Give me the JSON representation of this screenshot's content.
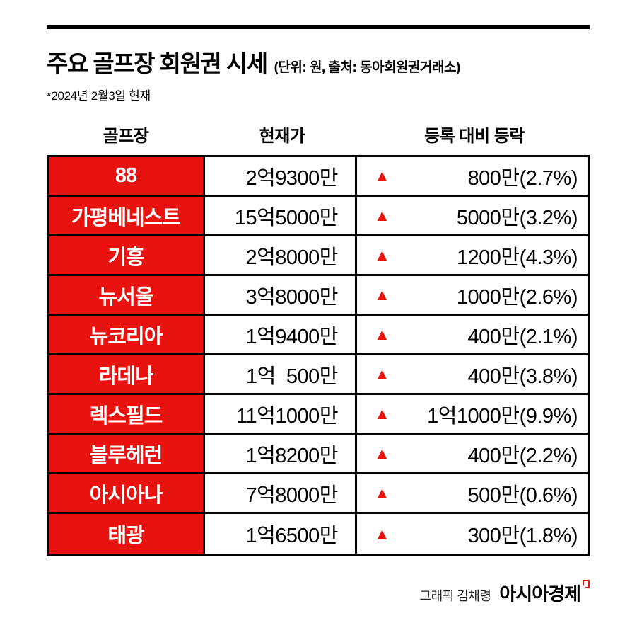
{
  "header": {
    "title": "주요 골프장 회원권 시세",
    "title_note": "(단위: 원, 출처: 동아회원권거래소)",
    "date_note": "*2024년 2월3일 현재"
  },
  "table": {
    "up_symbol": "▲",
    "columns": {
      "c0": "골프장",
      "c1": "현재가",
      "c2": "등록 대비 등락"
    },
    "rows": [
      {
        "name": "88",
        "price": "2억9300만",
        "change": "800만(2.7%)"
      },
      {
        "name": "가평베네스트",
        "price": "15억5000만",
        "change": "5000만(3.2%)"
      },
      {
        "name": "기흥",
        "price": "2억8000만",
        "change": "1200만(4.3%)"
      },
      {
        "name": "뉴서울",
        "price": "3억8000만",
        "change": "1000만(2.6%)"
      },
      {
        "name": "뉴코리아",
        "price": "1억9400만",
        "change": "400만(2.1%)"
      },
      {
        "name": "라데나",
        "price": "1억  500만",
        "change": "400만(3.8%)"
      },
      {
        "name": "렉스필드",
        "price": "11억1000만",
        "change": "1억1000만(9.9%)"
      },
      {
        "name": "블루헤런",
        "price": "1억8200만",
        "change": "400만(2.2%)"
      },
      {
        "name": "아시아나",
        "price": "7억8000만",
        "change": "500만(0.6%)"
      },
      {
        "name": "태광",
        "price": "1억6500만",
        "change": "300만(1.8%)"
      }
    ]
  },
  "footer": {
    "credit": "그래픽 김채령",
    "brand": "아시아경제"
  },
  "colors": {
    "accent_red": "#e8120f",
    "rule_black": "#000000"
  },
  "chart_data": {
    "type": "table",
    "title": "주요 골프장 회원권 시세",
    "unit_source": "단위: 원, 출처: 동아회원권거래소",
    "as_of": "2024년 2월3일 현재",
    "columns": [
      "골프장",
      "현재가",
      "등록 대비 등락"
    ],
    "rows": [
      {
        "golf_course": "88",
        "current_price_text": "2억9300만",
        "current_price_man_won": 29300,
        "change_direction": "up",
        "change_text": "800만(2.7%)",
        "change_man_won": 800,
        "change_pct": 2.7
      },
      {
        "golf_course": "가평베네스트",
        "current_price_text": "15억5000만",
        "current_price_man_won": 155000,
        "change_direction": "up",
        "change_text": "5000만(3.2%)",
        "change_man_won": 5000,
        "change_pct": 3.2
      },
      {
        "golf_course": "기흥",
        "current_price_text": "2억8000만",
        "current_price_man_won": 28000,
        "change_direction": "up",
        "change_text": "1200만(4.3%)",
        "change_man_won": 1200,
        "change_pct": 4.3
      },
      {
        "golf_course": "뉴서울",
        "current_price_text": "3억8000만",
        "current_price_man_won": 38000,
        "change_direction": "up",
        "change_text": "1000만(2.6%)",
        "change_man_won": 1000,
        "change_pct": 2.6
      },
      {
        "golf_course": "뉴코리아",
        "current_price_text": "1억9400만",
        "current_price_man_won": 19400,
        "change_direction": "up",
        "change_text": "400만(2.1%)",
        "change_man_won": 400,
        "change_pct": 2.1
      },
      {
        "golf_course": "라데나",
        "current_price_text": "1억 500만",
        "current_price_man_won": 10500,
        "change_direction": "up",
        "change_text": "400만(3.8%)",
        "change_man_won": 400,
        "change_pct": 3.8
      },
      {
        "golf_course": "렉스필드",
        "current_price_text": "11억1000만",
        "current_price_man_won": 111000,
        "change_direction": "up",
        "change_text": "1억1000만(9.9%)",
        "change_man_won": 11000,
        "change_pct": 9.9
      },
      {
        "golf_course": "블루헤런",
        "current_price_text": "1억8200만",
        "current_price_man_won": 18200,
        "change_direction": "up",
        "change_text": "400만(2.2%)",
        "change_man_won": 400,
        "change_pct": 2.2
      },
      {
        "golf_course": "아시아나",
        "current_price_text": "7억8000만",
        "current_price_man_won": 78000,
        "change_direction": "up",
        "change_text": "500만(0.6%)",
        "change_man_won": 500,
        "change_pct": 0.6
      },
      {
        "golf_course": "태광",
        "current_price_text": "1억6500만",
        "current_price_man_won": 16500,
        "change_direction": "up",
        "change_text": "300만(1.8%)",
        "change_man_won": 300,
        "change_pct": 1.8
      }
    ]
  }
}
